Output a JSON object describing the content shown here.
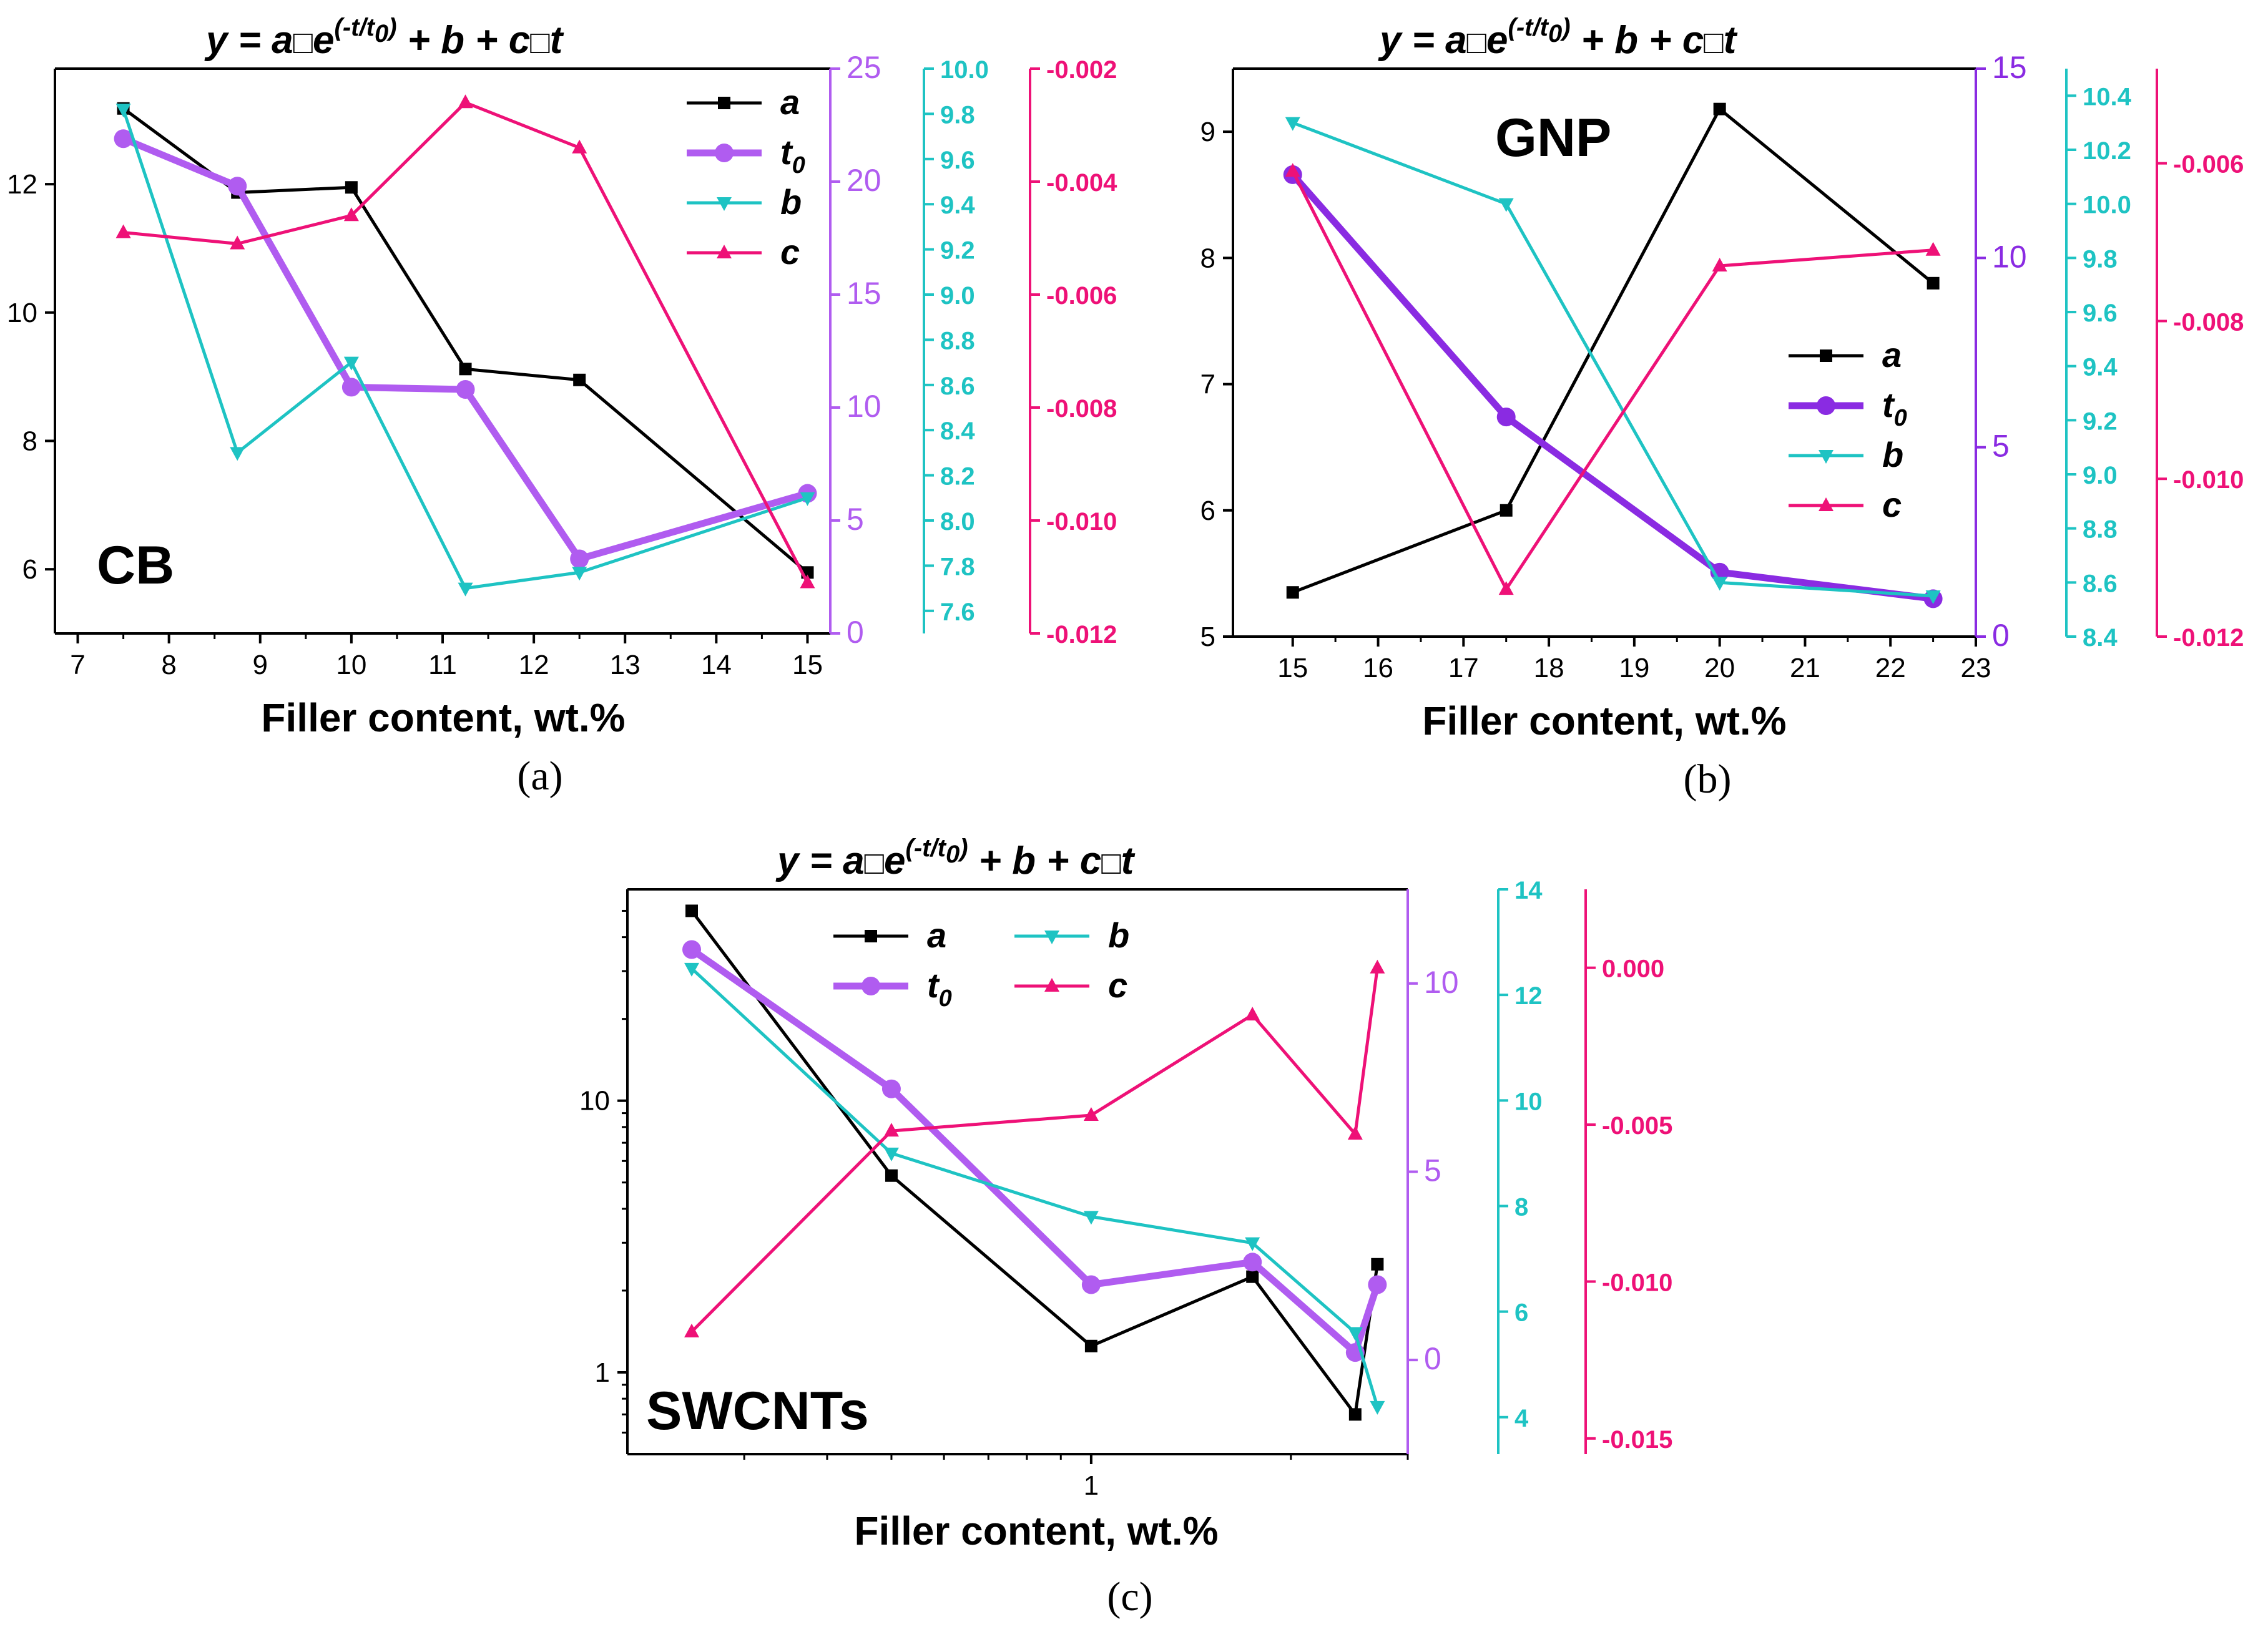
{
  "colors": {
    "a": "#000000",
    "t0_ab": "#b05cf0",
    "t0_b": "#8a2be2",
    "b": "#1ec3c3",
    "c": "#ee1177"
  },
  "chart_data": [
    {
      "type": "line",
      "panel": "a",
      "caption": "(a)",
      "title": {
        "lhs": "y = a",
        "exp": "(-t/t",
        "exp_sub": "0",
        "exp_close": ")",
        "rhs": " + b + c",
        "tail": "t"
      },
      "inner_label": "CB",
      "xlabel": "Filler content, wt.%",
      "xscale": "linear",
      "xlim": [
        6.75,
        15.25
      ],
      "xticks": [
        7,
        8,
        9,
        10,
        11,
        12,
        13,
        14,
        15
      ],
      "legend": [
        "a",
        "t0",
        "b",
        "c"
      ],
      "axes": {
        "a": {
          "lim": [
            5.0,
            13.8
          ],
          "ticks": [
            6,
            8,
            10,
            12
          ],
          "labels": [
            "6",
            "8",
            "10",
            "12"
          ]
        },
        "t0": {
          "lim": [
            0,
            25
          ],
          "ticks": [
            0,
            5,
            10,
            15,
            20,
            25
          ],
          "labels": [
            "0",
            "5",
            "10",
            "15",
            "20",
            "25"
          ]
        },
        "b": {
          "lim": [
            7.5,
            10.0
          ],
          "ticks": [
            7.6,
            7.8,
            8.0,
            8.2,
            8.4,
            8.6,
            8.8,
            9.0,
            9.2,
            9.4,
            9.6,
            9.8,
            10.0
          ],
          "labels": [
            "7.6",
            "7.8",
            "8.0",
            "8.2",
            "8.4",
            "8.6",
            "8.8",
            "9.0",
            "9.2",
            "9.4",
            "9.6",
            "9.8",
            "10.0"
          ]
        },
        "c": {
          "lim": [
            -0.012,
            -0.002
          ],
          "ticks": [
            -0.012,
            -0.01,
            -0.008,
            -0.006,
            -0.004,
            -0.002
          ],
          "labels": [
            "-0.012",
            "-0.010",
            "-0.008",
            "-0.006",
            "-0.004",
            "-0.002"
          ]
        }
      },
      "series": [
        {
          "name": "a",
          "x": [
            7.5,
            8.75,
            10,
            11.25,
            12.5,
            15
          ],
          "values": [
            13.18,
            11.87,
            11.95,
            9.12,
            8.95,
            5.95
          ]
        },
        {
          "name": "t0",
          "x": [
            7.5,
            8.75,
            10,
            11.25,
            12.5,
            15
          ],
          "values": [
            21.9,
            19.8,
            10.9,
            10.8,
            3.3,
            6.2
          ]
        },
        {
          "name": "b",
          "x": [
            7.5,
            8.75,
            10,
            11.25,
            12.5,
            15
          ],
          "values": [
            9.82,
            8.3,
            8.7,
            7.7,
            7.77,
            8.1
          ]
        },
        {
          "name": "c",
          "x": [
            7.5,
            8.75,
            10,
            11.25,
            12.5,
            15
          ],
          "values": [
            -0.0049,
            -0.0051,
            -0.0046,
            -0.0026,
            -0.0034,
            -0.0111
          ]
        }
      ]
    },
    {
      "type": "line",
      "panel": "b",
      "caption": "(b)",
      "title": {
        "lhs": "y = a",
        "exp": "(-t/t",
        "exp_sub": "0",
        "exp_close": ")",
        "rhs": " + b + c",
        "tail": "t"
      },
      "inner_label": "GNP",
      "xlabel": "Filler content, wt.%",
      "xscale": "linear",
      "xlim": [
        14.3,
        23.0
      ],
      "xticks": [
        15,
        16,
        17,
        18,
        19,
        20,
        21,
        22,
        23
      ],
      "legend": [
        "a",
        "t0",
        "b",
        "c"
      ],
      "axes": {
        "a": {
          "lim": [
            5.0,
            9.5
          ],
          "ticks": [
            5,
            6,
            7,
            8,
            9
          ],
          "labels": [
            "5",
            "6",
            "7",
            "8",
            "9"
          ]
        },
        "t0": {
          "lim": [
            0,
            15
          ],
          "ticks": [
            0,
            5,
            10,
            15
          ],
          "labels": [
            "0",
            "5",
            "10",
            "15"
          ]
        },
        "b": {
          "lim": [
            8.4,
            10.5
          ],
          "ticks": [
            8.4,
            8.6,
            8.8,
            9.0,
            9.2,
            9.4,
            9.6,
            9.8,
            10.0,
            10.2,
            10.4
          ],
          "labels": [
            "8.4",
            "8.6",
            "8.8",
            "9.0",
            "9.2",
            "9.4",
            "9.6",
            "9.8",
            "10.0",
            "10.2",
            "10.4"
          ]
        },
        "c": {
          "lim": [
            -0.012,
            -0.0048
          ],
          "ticks": [
            -0.012,
            -0.01,
            -0.008,
            -0.006
          ],
          "labels": [
            "-0.012",
            "-0.010",
            "-0.008",
            "-0.006"
          ]
        }
      },
      "series": [
        {
          "name": "a",
          "x": [
            15,
            17.5,
            20,
            22.5
          ],
          "values": [
            5.35,
            6.0,
            9.18,
            7.8
          ]
        },
        {
          "name": "t0",
          "x": [
            15,
            17.5,
            20,
            22.5
          ],
          "values": [
            12.2,
            5.8,
            1.7,
            1.0
          ]
        },
        {
          "name": "b",
          "x": [
            15,
            17.5,
            20,
            22.5
          ],
          "values": [
            10.3,
            10.0,
            8.6,
            8.55
          ]
        },
        {
          "name": "c",
          "x": [
            15,
            17.5,
            20,
            22.5
          ],
          "values": [
            -0.0061,
            -0.0114,
            -0.0073,
            -0.0071
          ]
        }
      ]
    },
    {
      "type": "line",
      "panel": "c",
      "caption": "(c)",
      "title": {
        "lhs": "y = a",
        "exp": "(-t/t",
        "exp_sub": "0",
        "exp_close": ")",
        "rhs": " + b + c",
        "tail": "t"
      },
      "inner_label": "SWCNTs",
      "xlabel": "Filler content, wt.%",
      "xscale": "log",
      "xlim": [
        0.2,
        3.0
      ],
      "xticks": [
        1
      ],
      "legend": [
        "a",
        "b",
        "t0",
        "c"
      ],
      "axes": {
        "a": {
          "scale": "log",
          "lim": [
            0.5,
            60
          ],
          "ticks": [
            1,
            10
          ],
          "labels": [
            "1",
            "10"
          ]
        },
        "t0": {
          "lim": [
            -2.5,
            12.5
          ],
          "ticks": [
            0,
            5,
            10
          ],
          "labels": [
            "0",
            "5",
            "10"
          ]
        },
        "b": {
          "lim": [
            3.3,
            14.0
          ],
          "ticks": [
            4,
            6,
            8,
            10,
            12,
            14
          ],
          "labels": [
            "4",
            "6",
            "8",
            "10",
            "12",
            "14"
          ]
        },
        "c": {
          "lim": [
            -0.0155,
            0.0025
          ],
          "ticks": [
            -0.015,
            -0.01,
            -0.005,
            0.0
          ],
          "labels": [
            "-0.015",
            "-0.010",
            "-0.005",
            "0.000"
          ]
        }
      },
      "series": [
        {
          "name": "a",
          "x": [
            0.25,
            0.5,
            1.0,
            1.75,
            2.5,
            2.7
          ],
          "values": [
            50,
            5.3,
            1.25,
            2.25,
            0.7,
            2.5
          ]
        },
        {
          "name": "t0",
          "x": [
            0.25,
            0.5,
            1.0,
            1.75,
            2.5,
            2.7
          ],
          "values": [
            10.9,
            7.2,
            2.0,
            2.6,
            0.2,
            2.0
          ]
        },
        {
          "name": "b",
          "x": [
            0.25,
            0.5,
            1.0,
            1.75,
            2.5,
            2.7
          ],
          "values": [
            12.5,
            9.0,
            7.8,
            7.3,
            5.6,
            4.2
          ]
        },
        {
          "name": "c",
          "x": [
            0.25,
            0.5,
            1.0,
            1.75,
            2.5,
            2.7
          ],
          "values": [
            -0.0116,
            -0.0052,
            -0.0047,
            -0.0015,
            -0.0053,
            0.0
          ]
        }
      ]
    }
  ]
}
